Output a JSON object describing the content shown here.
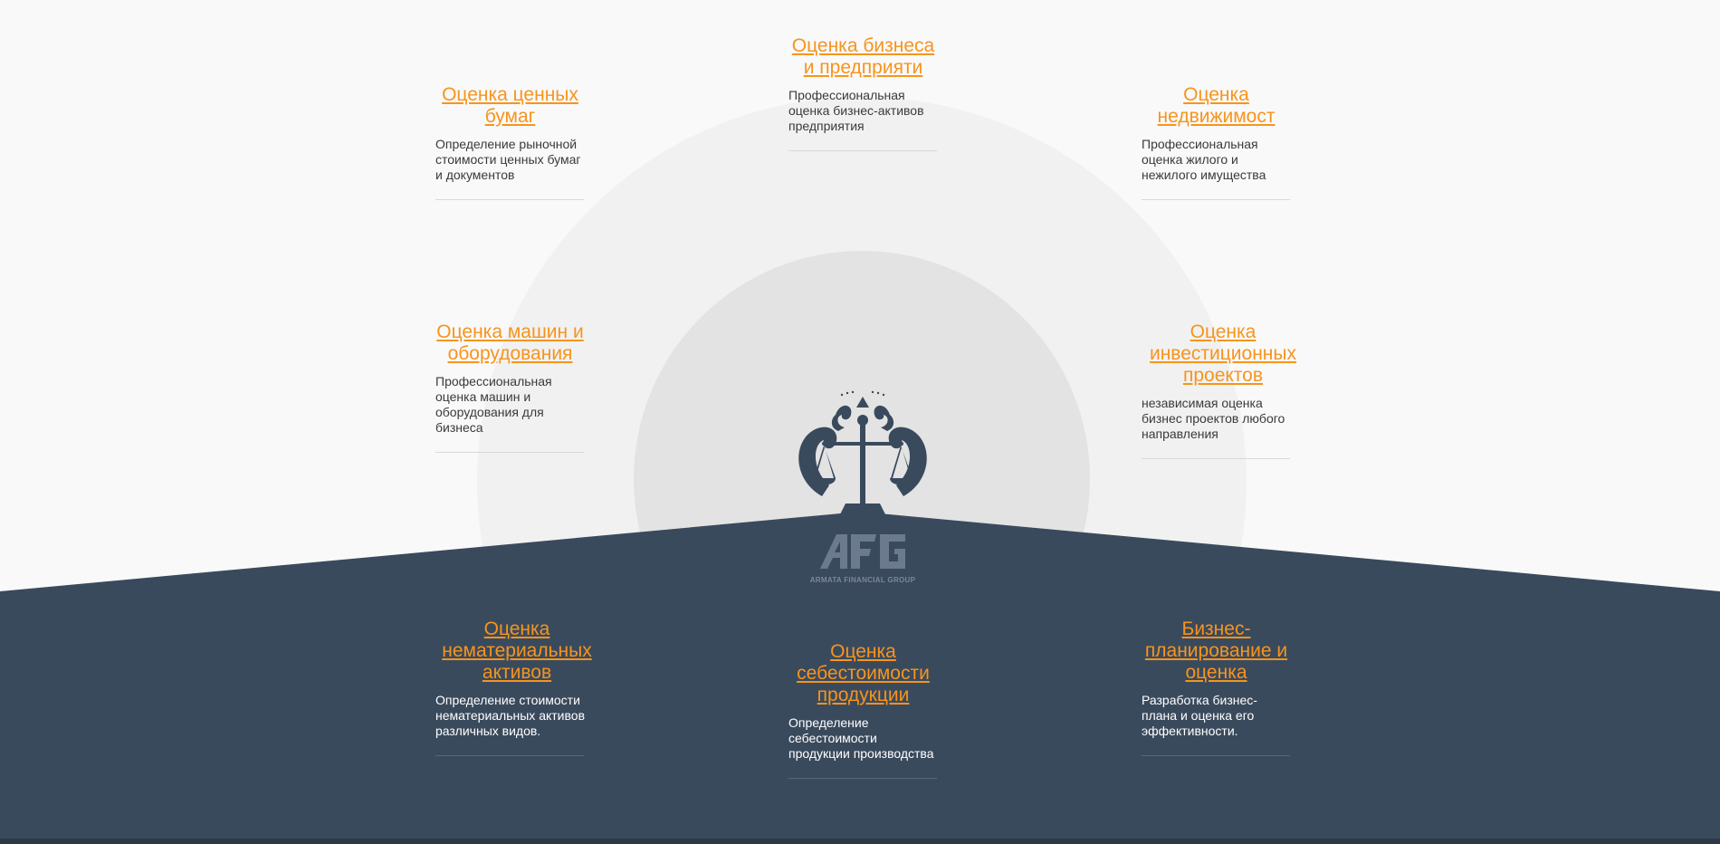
{
  "colors": {
    "background": "#f9f9f9",
    "dark_panel": "#3a4a5d",
    "accent": "#f7941d",
    "outer_circle": "#f1f1f1",
    "inner_circle": "#e3e3e3"
  },
  "logo": {
    "mark": "AFG",
    "tagline": "ARMATA FINANCIAL GROUP"
  },
  "services": [
    {
      "title": "Оценка ценных бумаг",
      "description": "Определение рыночной стоимости ценных бумаг и документов"
    },
    {
      "title": "Оценка бизнеса и предприяти",
      "description": "Профессиональная оценка бизнес-активов предприятия"
    },
    {
      "title": "Оценка недвижимост",
      "description": "Профессиональная оценка жилого и нежилого имущества"
    },
    {
      "title": "Оценка машин и оборудования",
      "description": "Профессиональная оценка машин и оборудования для бизнеса"
    },
    {
      "title": "Оценка инвестиционных проектов",
      "description": "независимая оценка бизнес проектов любого направления"
    },
    {
      "title": "Оценка нематериальных активов",
      "description": "Определение стоимости нематериальных активов различных видов."
    },
    {
      "title": "Оценка себестоимости продукции",
      "description": "Определение себестоимости продукции производства"
    },
    {
      "title": "Бизнес-планирование и оценка",
      "description": "Разработка бизнес-плана и оценка его эффективности."
    }
  ]
}
